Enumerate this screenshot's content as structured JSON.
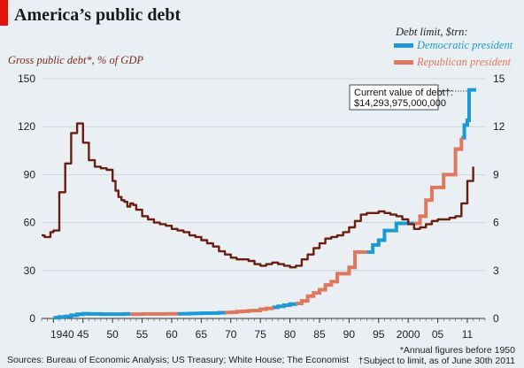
{
  "header": {
    "title": "America’s public debt",
    "left_axis_label": "Gross public debt*, % of GDP",
    "right_axis_label": "Debt limit, $trn:",
    "legend_democratic": "Democratic president",
    "legend_republican": "Republican president"
  },
  "footer": {
    "sources": "Sources: Bureau of Economic Analysis; US Treasury; White House; The Economist",
    "note_annual": "*Annual figures before 1950",
    "note_limit": "†Subject to limit, as of June 30th 2011"
  },
  "annotation": {
    "line1": "Current value of debt†:",
    "line2": "$14,293,975,000,000"
  },
  "colors": {
    "gdp_line": "#6b1e10",
    "democratic": "#1d9ad6",
    "republican": "#e0785f",
    "background": "#e9eff2",
    "gridline": "#c7d2d8",
    "accent": "#e3120b"
  },
  "chart_data": {
    "type": "line",
    "xlim": [
      1938,
      2013
    ],
    "y_left_lim": [
      0,
      150
    ],
    "y_right_lim": [
      0,
      15
    ],
    "x_ticks": [
      1940,
      1945,
      1950,
      1955,
      1960,
      1965,
      1970,
      1975,
      1980,
      1985,
      1990,
      1995,
      2000,
      2005,
      2010
    ],
    "x_tick_labels": [
      "1940",
      "45",
      "50",
      "55",
      "60",
      "65",
      "70",
      "75",
      "80",
      "85",
      "90",
      "95",
      "2000",
      "05",
      "11"
    ],
    "y_left_ticks": [
      0,
      30,
      60,
      90,
      120,
      150
    ],
    "y_right_ticks": [
      0,
      3,
      6,
      9,
      12,
      15
    ],
    "grid": true,
    "gdp_series": {
      "name": "Gross public debt, % of GDP",
      "axis": "left",
      "x": [
        1938,
        1938.5,
        1939,
        1939.5,
        1940,
        1940.5,
        1941,
        1942,
        1943,
        1944,
        1945,
        1946,
        1947,
        1948,
        1949,
        1950,
        1950.5,
        1951,
        1951.5,
        1952,
        1952.5,
        1953,
        1953.5,
        1954,
        1955,
        1956,
        1957,
        1958,
        1959,
        1960,
        1961,
        1962,
        1963,
        1964,
        1965,
        1966,
        1967,
        1968,
        1969,
        1970,
        1971,
        1972,
        1973,
        1974,
        1975,
        1976,
        1977,
        1978,
        1979,
        1980,
        1981,
        1982,
        1983,
        1984,
        1985,
        1986,
        1987,
        1988,
        1989,
        1990,
        1991,
        1992,
        1993,
        1994,
        1995,
        1996,
        1997,
        1998,
        1999,
        2000,
        2001,
        2002,
        2003,
        2004,
        2005,
        2006,
        2007,
        2008,
        2009,
        2010,
        2011
      ],
      "y": [
        52,
        51,
        51,
        54,
        55,
        55,
        79,
        97,
        116,
        122,
        110,
        99,
        95,
        94,
        93,
        86,
        80,
        76,
        74,
        73,
        70,
        72,
        71,
        68,
        64,
        62,
        60,
        59,
        58,
        56,
        55,
        54,
        52,
        51,
        49,
        47,
        45,
        42,
        40,
        38,
        37,
        37,
        36,
        34,
        33,
        34,
        35,
        34,
        33,
        32,
        33,
        37,
        40,
        44,
        47,
        50,
        51,
        52,
        54,
        57,
        61,
        65,
        66,
        66,
        67,
        66,
        65,
        64,
        62,
        59,
        56,
        57,
        59,
        61,
        62,
        62,
        63,
        64,
        72,
        86,
        95
      ]
    },
    "debt_limit_series": [
      {
        "name": "Democratic president",
        "axis": "right",
        "segments": [
          {
            "x": [
              1940,
              1941,
              1942,
              1943,
              1944,
              1945,
              1946,
              1948,
              1950,
              1952,
              1953
            ],
            "y": [
              0.05,
              0.1,
              0.13,
              0.2,
              0.26,
              0.3,
              0.28,
              0.27,
              0.27,
              0.28,
              0.28
            ]
          },
          {
            "x": [
              1961,
              1962,
              1963,
              1964,
              1965,
              1966,
              1967,
              1968,
              1969
            ],
            "y": [
              0.29,
              0.3,
              0.31,
              0.32,
              0.33,
              0.33,
              0.34,
              0.36,
              0.37
            ]
          },
          {
            "x": [
              1977,
              1978,
              1979,
              1980,
              1981
            ],
            "y": [
              0.7,
              0.76,
              0.83,
              0.9,
              0.94
            ]
          },
          {
            "x": [
              1993,
              1994,
              1995,
              1996,
              1997,
              1998,
              1999,
              2000,
              2001
            ],
            "y": [
              4.15,
              4.6,
              4.9,
              5.5,
              5.5,
              5.95,
              5.95,
              5.95,
              5.95
            ]
          },
          {
            "x": [
              2009,
              2009.5,
              2010,
              2010.3,
              2011.5
            ],
            "y": [
              11.3,
              12.1,
              12.4,
              14.3,
              14.3
            ]
          }
        ]
      },
      {
        "name": "Republican president",
        "axis": "right",
        "segments": [
          {
            "x": [
              1953,
              1955,
              1957,
              1959,
              1961
            ],
            "y": [
              0.27,
              0.28,
              0.28,
              0.29,
              0.29
            ]
          },
          {
            "x": [
              1969,
              1970,
              1971,
              1972,
              1973,
              1974,
              1975,
              1976,
              1977
            ],
            "y": [
              0.37,
              0.39,
              0.43,
              0.45,
              0.48,
              0.5,
              0.58,
              0.63,
              0.7
            ]
          },
          {
            "x": [
              1981,
              1982,
              1983,
              1984,
              1985,
              1986,
              1987,
              1988,
              1989,
              1990,
              1991,
              1992,
              1993
            ],
            "y": [
              0.94,
              1.1,
              1.4,
              1.6,
              1.8,
              2.1,
              2.3,
              2.8,
              2.8,
              3.2,
              4.15,
              4.15,
              4.15
            ]
          },
          {
            "x": [
              2001,
              2002,
              2003,
              2004,
              2005,
              2006,
              2007,
              2008,
              2009
            ],
            "y": [
              5.95,
              6.4,
              7.4,
              8.2,
              8.2,
              9.0,
              9.0,
              10.6,
              11.3
            ]
          }
        ]
      }
    ]
  }
}
